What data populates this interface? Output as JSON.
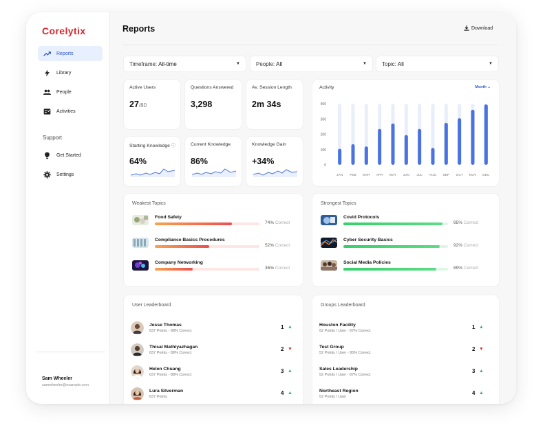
{
  "app": {
    "brand": "Corelytix"
  },
  "sidebar": {
    "nav": [
      {
        "label": "Reports",
        "icon": "trending-up-icon",
        "active": true
      },
      {
        "label": "Library",
        "icon": "lightning-icon"
      },
      {
        "label": "People",
        "icon": "people-icon"
      },
      {
        "label": "Activities",
        "icon": "activities-icon"
      }
    ],
    "support_heading": "Support",
    "support": [
      {
        "label": "Get Started",
        "icon": "bulb-icon"
      },
      {
        "label": "Settings",
        "icon": "gear-icon"
      }
    ],
    "user": {
      "name": "Sam Wheeler",
      "email": "samwheeler@example.com"
    }
  },
  "header": {
    "title": "Reports",
    "download_label": "Download"
  },
  "filters": [
    {
      "label": "Timeframe:",
      "value": "All-time"
    },
    {
      "label": "People:",
      "value": "All"
    },
    {
      "label": "Topic:",
      "value": "All"
    }
  ],
  "stats": {
    "active_users": {
      "label": "Active Users",
      "value": "27",
      "total": "/80"
    },
    "questions": {
      "label": "Questions Answered",
      "value": "3,298"
    },
    "session": {
      "label": "Av. Session Length",
      "value": "2m 34s"
    },
    "starting": {
      "label": "Starting Knowledge",
      "value": "64%"
    },
    "current": {
      "label": "Current Knowledge",
      "value": "86%"
    },
    "gain": {
      "label": "Knowledge Gain",
      "value": "+34%"
    }
  },
  "activity": {
    "title": "Activity",
    "period": "Month",
    "accent": "#4a72e0",
    "track": "#e9eefb"
  },
  "chart_data": {
    "type": "bar",
    "title": "Activity",
    "categories": [
      "JAN",
      "FEB",
      "MAR",
      "APR",
      "MAY",
      "JUN",
      "JUL",
      "AUG",
      "SEP",
      "OCT",
      "NOV",
      "DEC"
    ],
    "values": [
      105,
      135,
      120,
      235,
      270,
      195,
      235,
      110,
      275,
      305,
      360,
      395
    ],
    "yticks": [
      0,
      100,
      200,
      300,
      400
    ],
    "ylim": [
      0,
      400
    ],
    "xlabel": "",
    "ylabel": ""
  },
  "weakest": {
    "title": "Weakest Topics",
    "items": [
      {
        "name": "Food Safety",
        "percent": 74,
        "pct_label": "74%",
        "suffix": "Correct"
      },
      {
        "name": "Compliance Basics Procedures",
        "percent": 52,
        "pct_label": "52%",
        "suffix": "Correct"
      },
      {
        "name": "Company Networking",
        "percent": 36,
        "pct_label": "36%",
        "suffix": "Correct"
      }
    ]
  },
  "strongest": {
    "title": "Strongest Topics",
    "items": [
      {
        "name": "Covid Protocols",
        "percent": 95,
        "pct_label": "95%",
        "suffix": "Correct"
      },
      {
        "name": "Cyber Security Basics",
        "percent": 92,
        "pct_label": "92%",
        "suffix": "Correct"
      },
      {
        "name": "Social Media Policies",
        "percent": 89,
        "pct_label": "89%",
        "suffix": "Correct"
      }
    ]
  },
  "user_leaderboard": {
    "title": "User Leaderboard",
    "rows": [
      {
        "name": "Jesse Thomas",
        "sub": "637 Points - 98% Correct",
        "rank": "1",
        "trend": "up"
      },
      {
        "name": "Thisal Mathiyazhagan",
        "sub": "637 Points - 89% Correct",
        "rank": "2",
        "trend": "down"
      },
      {
        "name": "Helen Chuang",
        "sub": "637 Points - 88% Correct",
        "rank": "3",
        "trend": "up"
      },
      {
        "name": "Lura Silverman",
        "sub": "637 Points",
        "rank": "4",
        "trend": "up"
      }
    ]
  },
  "groups_leaderboard": {
    "title": "Groups Leaderboard",
    "rows": [
      {
        "name": "Houston Facility",
        "sub": "52 Points / User - 97% Correct",
        "rank": "1",
        "trend": "up"
      },
      {
        "name": "Test Group",
        "sub": "52 Points / User - 95% Correct",
        "rank": "2",
        "trend": "down"
      },
      {
        "name": "Sales Leadership",
        "sub": "52 Points / User - 87% Correct",
        "rank": "3",
        "trend": "up"
      },
      {
        "name": "Northeast Region",
        "sub": "52 Points / User",
        "rank": "4",
        "trend": "up"
      }
    ]
  }
}
